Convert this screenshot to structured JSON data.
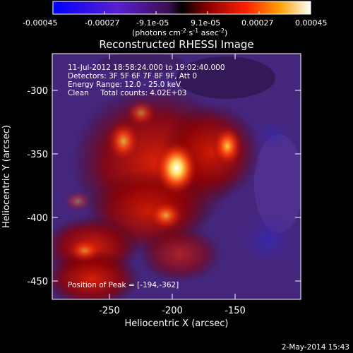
{
  "colorbar": {
    "ticks": [
      "-0.00045",
      "-0.00027",
      "-9.1e-05",
      "9.1e-05",
      "0.00027",
      "0.00045"
    ],
    "unit_main": "(photons cm",
    "unit_exp1": "-2",
    "unit_mid": " s",
    "unit_exp2": "-1",
    "unit_tail": " asec",
    "unit_exp3": "-2",
    "unit_close": ")"
  },
  "title": "Reconstructed RHESSI Image",
  "info": {
    "line1": "11-Jul-2012 18:58:24.000 to 19:02:40.000",
    "line2": "Detectors: 3F 5F 6F 7F 8F 9F, Att 0",
    "line3": "Energy Range: 12.0 - 25.0 keV",
    "line4": "Clean     Total counts: 4.02E+03"
  },
  "peak_text": "Position of Peak = [-194,-362]",
  "axes": {
    "xlabel": "Heliocentric X (arcsec)",
    "ylabel": "Heliocentric Y (arcsec)",
    "xticks": [
      "-250",
      "-200",
      "-150"
    ],
    "yticks": [
      "-300",
      "-350",
      "-400",
      "-450"
    ]
  },
  "timestamp": "2-May-2014 15:43"
}
